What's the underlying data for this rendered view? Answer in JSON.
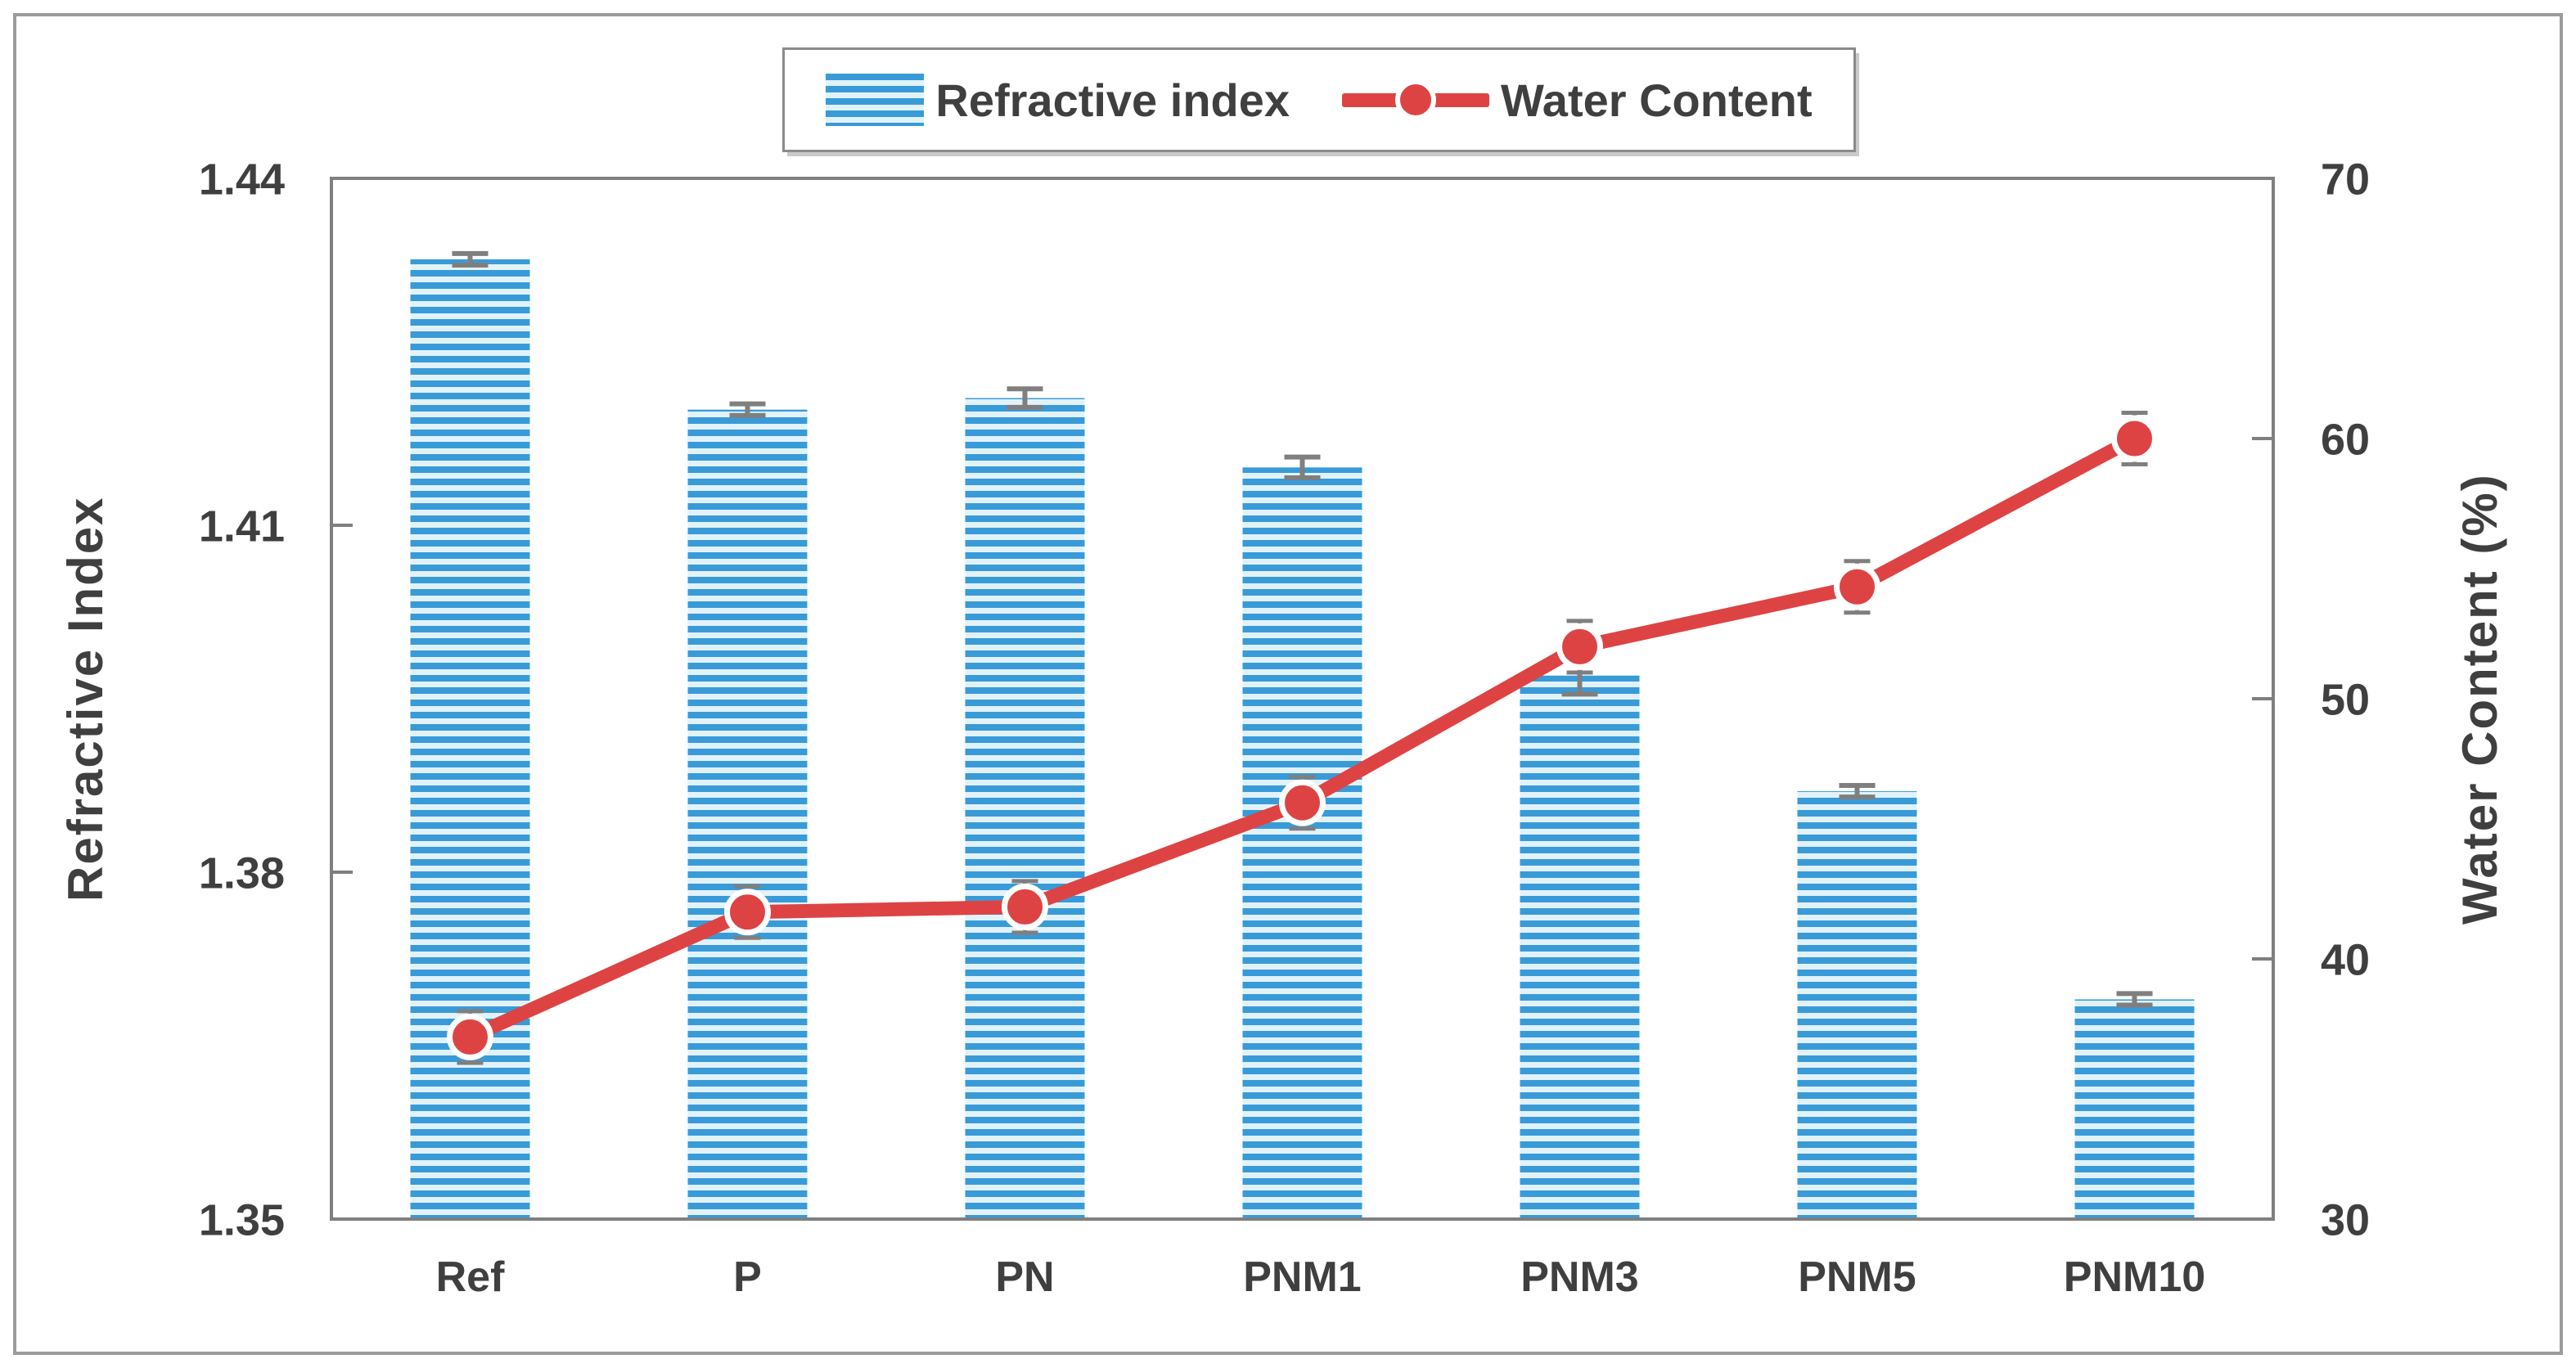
{
  "figure": {
    "type_note": "combo bar + line chart, no title, legend top center"
  },
  "chart_data": {
    "type": "bar",
    "combo": "bar-line",
    "categories": [
      "Ref",
      "P",
      "PN",
      "PNM1",
      "PNM3",
      "PNM5",
      "PNM10"
    ],
    "series": [
      {
        "name": "Refractive index",
        "type": "bar",
        "axis": "left",
        "values": [
          1.433,
          1.42,
          1.421,
          1.415,
          1.397,
          1.387,
          1.369
        ],
        "errors": [
          0.0005,
          0.0005,
          0.0008,
          0.0009,
          0.0016,
          0.0005,
          0.0005
        ]
      },
      {
        "name": "Water Content",
        "type": "line",
        "axis": "right",
        "values": [
          37,
          41.8,
          42,
          46,
          52,
          54.3,
          60
        ],
        "errors": [
          0.3,
          0.3,
          0.3,
          0.3,
          0.3,
          0.3,
          0.3
        ]
      }
    ],
    "left_axis": {
      "title": "Refractive Index",
      "min": 1.35,
      "max": 1.44,
      "ticks": [
        "1.44",
        "1.41",
        "1.38",
        "1.35"
      ],
      "tick_values": [
        1.44,
        1.41,
        1.38,
        1.35
      ]
    },
    "right_axis": {
      "title": "Water Content (%)",
      "min": 30,
      "max": 70,
      "ticks": [
        "70",
        "60",
        "50",
        "40",
        "30"
      ],
      "tick_values": [
        70,
        60,
        50,
        40,
        30
      ]
    },
    "legend": {
      "position": "top-center",
      "items": [
        "Refractive index",
        "Water Content"
      ]
    },
    "grid": "off",
    "colors": {
      "bar_stripe": "#389bd8",
      "bar_light": "#e2f2fb",
      "line_red": "#de4343",
      "axis_gray": "#7f7f7f",
      "error_gray": "#7f7f7f",
      "text_dark": "#3f3f3f"
    }
  }
}
